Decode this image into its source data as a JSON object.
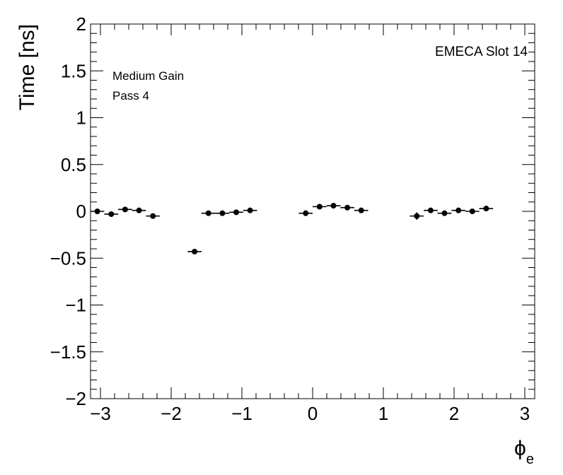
{
  "chart_data": {
    "type": "scatter",
    "title": "",
    "ylabel": "Time [ns]",
    "xlabel_main": "ϕ",
    "xlabel_sub": "e",
    "xlim": [
      -3.14,
      3.14
    ],
    "ylim": [
      -2,
      2
    ],
    "xticks": [
      -3,
      -2,
      -1,
      0,
      1,
      2,
      3
    ],
    "xtick_labels": [
      "−3",
      "−2",
      "−1",
      "0",
      "1",
      "2",
      "3"
    ],
    "yticks": [
      -2,
      -1.5,
      -1,
      -0.5,
      0,
      0.5,
      1,
      1.5,
      2
    ],
    "ytick_labels": [
      "−2",
      "−1.5",
      "−1",
      "−0.5",
      "0",
      "0.5",
      "1",
      "1.5",
      "2"
    ],
    "annotations": [
      "Medium Gain",
      "Pass 4"
    ],
    "corner_label": "EMECA Slot 14",
    "bin_half_width": 0.0982,
    "marker_color": "#000000",
    "series": [
      {
        "x": [
          -3.044,
          -2.847,
          -2.651,
          -2.454,
          -2.258,
          -1.669,
          -1.473,
          -1.276,
          -1.08,
          -0.884,
          -0.098,
          0.098,
          0.295,
          0.491,
          0.687,
          1.473,
          1.669,
          1.865,
          2.062,
          2.258,
          2.454
        ],
        "y": [
          0.0,
          -0.03,
          0.02,
          0.01,
          -0.05,
          -0.43,
          -0.02,
          -0.02,
          -0.01,
          0.01,
          -0.02,
          0.05,
          0.06,
          0.04,
          0.01,
          -0.05,
          0.01,
          -0.02,
          0.01,
          0.0,
          0.03
        ],
        "yerr": [
          0.01,
          0.01,
          0.01,
          0.01,
          0.01,
          0.01,
          0.01,
          0.01,
          0.01,
          0.01,
          0.03,
          0.01,
          0.01,
          0.01,
          0.01,
          0.04,
          0.01,
          0.01,
          0.01,
          0.01,
          0.02
        ]
      }
    ]
  }
}
